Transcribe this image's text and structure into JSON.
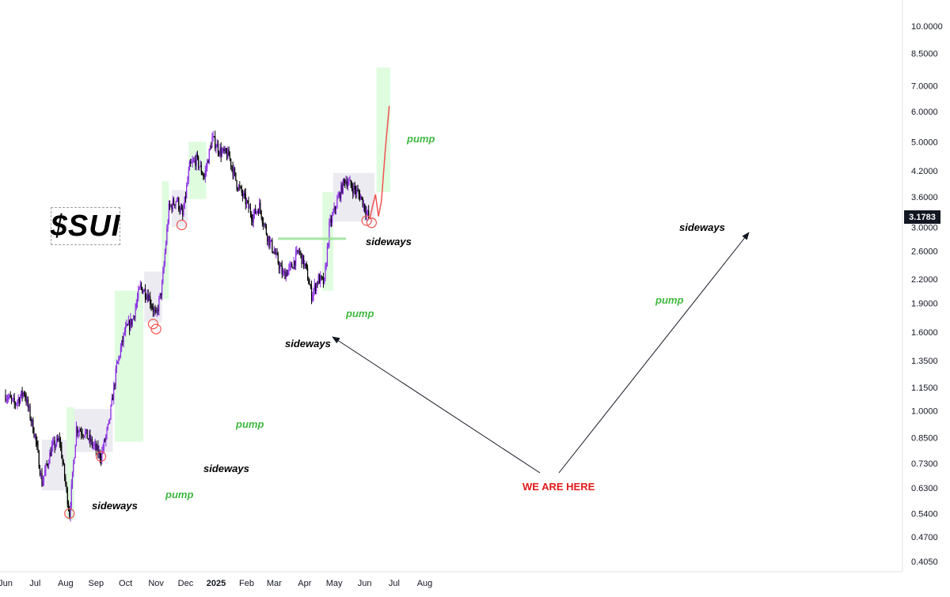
{
  "ticker": "$SUI",
  "current_price": "3.1783",
  "we_are_here": "WE ARE HERE",
  "chart_data": {
    "type": "candlestick",
    "scale": "log",
    "y_ticks": [
      "10.0000",
      "8.5000",
      "7.0000",
      "6.0000",
      "5.0000",
      "4.2000",
      "3.6000",
      "3.0000",
      "2.6000",
      "2.2000",
      "1.9000",
      "1.6000",
      "1.3500",
      "1.1500",
      "1.0000",
      "0.8500",
      "0.7300",
      "0.6300",
      "0.5400",
      "0.4700",
      "0.4050"
    ],
    "x_ticks": [
      "Jun",
      "Jul",
      "Aug",
      "Sep",
      "Oct",
      "Nov",
      "Dec",
      "2025",
      "Feb",
      "Mar",
      "Apr",
      "May",
      "Jun",
      "Jul",
      "Aug"
    ],
    "price_path": [
      [
        "2024-06-01",
        1.1
      ],
      [
        "2024-06-10",
        1.04
      ],
      [
        "2024-06-20",
        1.12
      ],
      [
        "2024-07-01",
        0.86
      ],
      [
        "2024-07-08",
        0.65
      ],
      [
        "2024-07-18",
        0.8
      ],
      [
        "2024-07-26",
        0.84
      ],
      [
        "2024-08-05",
        0.54
      ],
      [
        "2024-08-12",
        0.9
      ],
      [
        "2024-08-20",
        0.88
      ],
      [
        "2024-08-28",
        0.82
      ],
      [
        "2024-09-06",
        0.76
      ],
      [
        "2024-09-14",
        0.92
      ],
      [
        "2024-09-22",
        1.3
      ],
      [
        "2024-09-30",
        1.6
      ],
      [
        "2024-10-08",
        1.72
      ],
      [
        "2024-10-16",
        2.1
      ],
      [
        "2024-10-24",
        2.0
      ],
      [
        "2024-11-01",
        1.75
      ],
      [
        "2024-11-07",
        2.1
      ],
      [
        "2024-11-14",
        3.35
      ],
      [
        "2024-11-22",
        3.55
      ],
      [
        "2024-11-28",
        3.2
      ],
      [
        "2024-12-05",
        4.3
      ],
      [
        "2024-12-12",
        4.5
      ],
      [
        "2024-12-20",
        4.05
      ],
      [
        "2024-12-28",
        5.1
      ],
      [
        "2025-01-06",
        4.7
      ],
      [
        "2025-01-14",
        4.6
      ],
      [
        "2025-01-22",
        3.9
      ],
      [
        "2025-01-30",
        3.55
      ],
      [
        "2025-02-07",
        3.2
      ],
      [
        "2025-02-14",
        3.4
      ],
      [
        "2025-02-22",
        2.85
      ],
      [
        "2025-03-02",
        2.55
      ],
      [
        "2025-03-10",
        2.25
      ],
      [
        "2025-03-18",
        2.35
      ],
      [
        "2025-03-26",
        2.6
      ],
      [
        "2025-04-02",
        2.35
      ],
      [
        "2025-04-08",
        2.0
      ],
      [
        "2025-04-15",
        2.2
      ],
      [
        "2025-04-21",
        2.15
      ],
      [
        "2025-04-26",
        3.0
      ],
      [
        "2025-05-04",
        3.5
      ],
      [
        "2025-05-12",
        4.0
      ],
      [
        "2025-05-20",
        3.8
      ],
      [
        "2025-05-28",
        3.6
      ],
      [
        "2025-06-05",
        3.18
      ]
    ],
    "sideways_zones": [
      {
        "start": "2024-07-08",
        "end": "2024-08-02",
        "low": 0.62,
        "high": 0.84,
        "label": "sideways"
      },
      {
        "start": "2024-08-08",
        "end": "2024-09-18",
        "low": 0.78,
        "high": 1.01,
        "label": "sideways"
      },
      {
        "start": "2024-10-20",
        "end": "2024-11-07",
        "low": 1.7,
        "high": 2.3,
        "label": "sideways"
      },
      {
        "start": "2024-11-17",
        "end": "2024-12-03",
        "low": 3.0,
        "high": 3.75,
        "label": "sideways"
      },
      {
        "start": "2025-04-30",
        "end": "2025-06-11",
        "low": 3.1,
        "high": 4.15,
        "label": "sideways"
      }
    ],
    "pump_zones": [
      {
        "start": "2024-08-02",
        "end": "2024-08-10",
        "low": 0.52,
        "high": 1.02,
        "label": "pump"
      },
      {
        "start": "2024-09-20",
        "end": "2024-10-19",
        "low": 0.83,
        "high": 2.05,
        "label": "pump"
      },
      {
        "start": "2024-11-07",
        "end": "2024-11-14",
        "low": 1.95,
        "high": 3.95,
        "label": "pump"
      },
      {
        "start": "2024-12-04",
        "end": "2024-12-22",
        "low": 3.55,
        "high": 5.0,
        "label": "pump"
      },
      {
        "start": "2025-04-19",
        "end": "2025-04-30",
        "low": 2.05,
        "high": 3.7,
        "label": "pump"
      },
      {
        "start": "2025-06-13",
        "end": "2025-06-27",
        "low": 3.7,
        "high": 7.8,
        "label": "pump"
      }
    ],
    "projection": [
      [
        "2025-06-06",
        3.15
      ],
      [
        "2025-06-09",
        3.4
      ],
      [
        "2025-06-12",
        3.65
      ],
      [
        "2025-06-15",
        3.2
      ],
      [
        "2025-06-18",
        3.5
      ],
      [
        "2025-06-22",
        4.8
      ],
      [
        "2025-06-26",
        6.2
      ]
    ]
  }
}
